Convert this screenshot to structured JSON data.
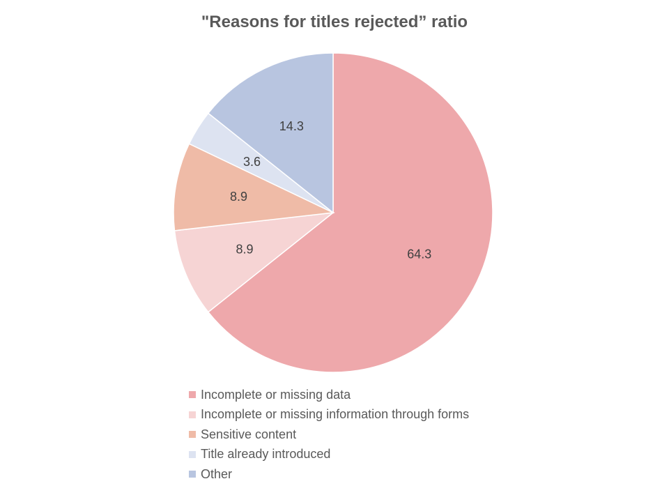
{
  "chart_data": {
    "type": "pie",
    "title": "\"Reasons for titles rejected” ratio",
    "categories": [
      "Incomplete or missing data",
      "Incomplete or missing information through forms",
      "Sensitive content",
      "Title already introduced",
      "Other"
    ],
    "values": [
      64.3,
      8.9,
      8.9,
      3.6,
      14.3
    ],
    "data_labels": [
      "64.3",
      "8.9",
      "8.9",
      "3.6",
      "14.3"
    ],
    "colors": [
      "#EEA8AB",
      "#F6D4D4",
      "#EFBBA7",
      "#DDE3F1",
      "#B8C5E0"
    ],
    "start": "12 o'clock",
    "direction": "clockwise",
    "legend_position": "bottom"
  }
}
